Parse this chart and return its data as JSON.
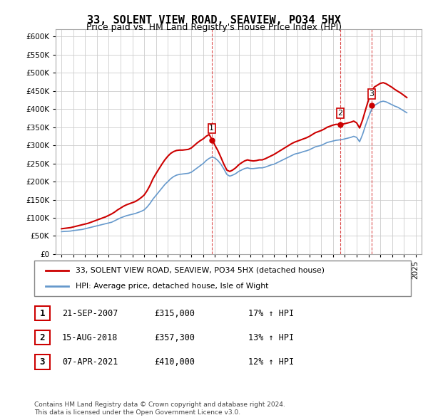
{
  "title": "33, SOLENT VIEW ROAD, SEAVIEW, PO34 5HX",
  "subtitle": "Price paid vs. HM Land Registry's House Price Index (HPI)",
  "legend_line1": "33, SOLENT VIEW ROAD, SEAVIEW, PO34 5HX (detached house)",
  "legend_line2": "HPI: Average price, detached house, Isle of Wight",
  "footer1": "Contains HM Land Registry data © Crown copyright and database right 2024.",
  "footer2": "This data is licensed under the Open Government Licence v3.0.",
  "transactions": [
    {
      "num": "1",
      "date": "21-SEP-2007",
      "price": "£315,000",
      "hpi": "17% ↑ HPI"
    },
    {
      "num": "2",
      "date": "15-AUG-2018",
      "price": "£357,300",
      "hpi": "13% ↑ HPI"
    },
    {
      "num": "3",
      "date": "07-APR-2021",
      "price": "£410,000",
      "hpi": "12% ↑ HPI"
    }
  ],
  "transaction_years": [
    2007.72,
    2018.62,
    2021.27
  ],
  "transaction_prices": [
    315000,
    357300,
    410000
  ],
  "ylim": [
    0,
    620000
  ],
  "yticks": [
    0,
    50000,
    100000,
    150000,
    200000,
    250000,
    300000,
    350000,
    400000,
    450000,
    500000,
    550000,
    600000
  ],
  "red_color": "#cc0000",
  "blue_color": "#6699cc",
  "background_color": "#ffffff",
  "grid_color": "#cccccc",
  "hpi_data": {
    "years": [
      1995.0,
      1995.25,
      1995.5,
      1995.75,
      1996.0,
      1996.25,
      1996.5,
      1996.75,
      1997.0,
      1997.25,
      1997.5,
      1997.75,
      1998.0,
      1998.25,
      1998.5,
      1998.75,
      1999.0,
      1999.25,
      1999.5,
      1999.75,
      2000.0,
      2000.25,
      2000.5,
      2000.75,
      2001.0,
      2001.25,
      2001.5,
      2001.75,
      2002.0,
      2002.25,
      2002.5,
      2002.75,
      2003.0,
      2003.25,
      2003.5,
      2003.75,
      2004.0,
      2004.25,
      2004.5,
      2004.75,
      2005.0,
      2005.25,
      2005.5,
      2005.75,
      2006.0,
      2006.25,
      2006.5,
      2006.75,
      2007.0,
      2007.25,
      2007.5,
      2007.75,
      2008.0,
      2008.25,
      2008.5,
      2008.75,
      2009.0,
      2009.25,
      2009.5,
      2009.75,
      2010.0,
      2010.25,
      2010.5,
      2010.75,
      2011.0,
      2011.25,
      2011.5,
      2011.75,
      2012.0,
      2012.25,
      2012.5,
      2012.75,
      2013.0,
      2013.25,
      2013.5,
      2013.75,
      2014.0,
      2014.25,
      2014.5,
      2014.75,
      2015.0,
      2015.25,
      2015.5,
      2015.75,
      2016.0,
      2016.25,
      2016.5,
      2016.75,
      2017.0,
      2017.25,
      2017.5,
      2017.75,
      2018.0,
      2018.25,
      2018.5,
      2018.75,
      2019.0,
      2019.25,
      2019.5,
      2019.75,
      2020.0,
      2020.25,
      2020.5,
      2020.75,
      2021.0,
      2021.25,
      2021.5,
      2021.75,
      2022.0,
      2022.25,
      2022.5,
      2022.75,
      2023.0,
      2023.25,
      2023.5,
      2023.75,
      2024.0,
      2024.25
    ],
    "values": [
      62000,
      62500,
      63000,
      63500,
      65000,
      66000,
      67000,
      68000,
      70000,
      72000,
      74000,
      76000,
      78000,
      80000,
      82000,
      84000,
      86000,
      88000,
      92000,
      96000,
      100000,
      103000,
      106000,
      108000,
      110000,
      112000,
      115000,
      118000,
      122000,
      130000,
      140000,
      152000,
      162000,
      172000,
      182000,
      192000,
      200000,
      208000,
      214000,
      218000,
      220000,
      221000,
      222000,
      223000,
      226000,
      232000,
      238000,
      244000,
      250000,
      258000,
      264000,
      268000,
      265000,
      258000,
      248000,
      235000,
      220000,
      215000,
      218000,
      222000,
      228000,
      232000,
      236000,
      238000,
      236000,
      236000,
      237000,
      238000,
      238000,
      240000,
      243000,
      246000,
      248000,
      252000,
      256000,
      260000,
      264000,
      268000,
      272000,
      276000,
      278000,
      280000,
      283000,
      285000,
      288000,
      292000,
      296000,
      298000,
      300000,
      304000,
      308000,
      310000,
      312000,
      314000,
      315000,
      316000,
      318000,
      320000,
      322000,
      325000,
      322000,
      310000,
      330000,
      355000,
      378000,
      398000,
      410000,
      415000,
      420000,
      422000,
      420000,
      416000,
      412000,
      408000,
      405000,
      400000,
      395000,
      390000
    ]
  },
  "price_paid_data": {
    "years": [
      1995.0,
      1995.25,
      1995.5,
      1995.75,
      1996.0,
      1996.25,
      1996.5,
      1996.75,
      1997.0,
      1997.25,
      1997.5,
      1997.75,
      1998.0,
      1998.25,
      1998.5,
      1998.75,
      1999.0,
      1999.25,
      1999.5,
      1999.75,
      2000.0,
      2000.25,
      2000.5,
      2000.75,
      2001.0,
      2001.25,
      2001.5,
      2001.75,
      2002.0,
      2002.25,
      2002.5,
      2002.75,
      2003.0,
      2003.25,
      2003.5,
      2003.75,
      2004.0,
      2004.25,
      2004.5,
      2004.75,
      2005.0,
      2005.25,
      2005.5,
      2005.75,
      2006.0,
      2006.25,
      2006.5,
      2006.75,
      2007.0,
      2007.25,
      2007.5,
      2007.75,
      2008.0,
      2008.25,
      2008.5,
      2008.75,
      2009.0,
      2009.25,
      2009.5,
      2009.75,
      2010.0,
      2010.25,
      2010.5,
      2010.75,
      2011.0,
      2011.25,
      2011.5,
      2011.75,
      2012.0,
      2012.25,
      2012.5,
      2012.75,
      2013.0,
      2013.25,
      2013.5,
      2013.75,
      2014.0,
      2014.25,
      2014.5,
      2014.75,
      2015.0,
      2015.25,
      2015.5,
      2015.75,
      2016.0,
      2016.25,
      2016.5,
      2016.75,
      2017.0,
      2017.25,
      2017.5,
      2017.75,
      2018.0,
      2018.25,
      2018.5,
      2018.75,
      2019.0,
      2019.25,
      2019.5,
      2019.75,
      2020.0,
      2020.25,
      2020.5,
      2020.75,
      2021.0,
      2021.25,
      2021.5,
      2021.75,
      2022.0,
      2022.25,
      2022.5,
      2022.75,
      2023.0,
      2023.25,
      2023.5,
      2023.75,
      2024.0,
      2024.25
    ],
    "values": [
      70000,
      71000,
      72000,
      73000,
      75000,
      77000,
      79000,
      81000,
      83000,
      85000,
      88000,
      91000,
      94000,
      97000,
      100000,
      103000,
      107000,
      111000,
      116000,
      122000,
      127000,
      132000,
      136000,
      139000,
      142000,
      145000,
      150000,
      156000,
      163000,
      175000,
      190000,
      208000,
      222000,
      235000,
      248000,
      260000,
      270000,
      278000,
      283000,
      286000,
      287000,
      287000,
      288000,
      289000,
      293000,
      300000,
      307000,
      313000,
      318000,
      325000,
      330000,
      316000,
      300000,
      285000,
      267000,
      248000,
      232000,
      228000,
      232000,
      238000,
      246000,
      252000,
      257000,
      260000,
      258000,
      257000,
      258000,
      260000,
      260000,
      263000,
      267000,
      271000,
      275000,
      280000,
      285000,
      290000,
      295000,
      300000,
      305000,
      309000,
      312000,
      315000,
      318000,
      321000,
      325000,
      330000,
      335000,
      338000,
      341000,
      345000,
      350000,
      353000,
      356000,
      358000,
      358000,
      358000,
      360000,
      362000,
      364000,
      367000,
      362000,
      348000,
      370000,
      398000,
      425000,
      448000,
      461000,
      466000,
      471000,
      473000,
      470000,
      465000,
      460000,
      454000,
      449000,
      444000,
      438000,
      432000
    ]
  }
}
